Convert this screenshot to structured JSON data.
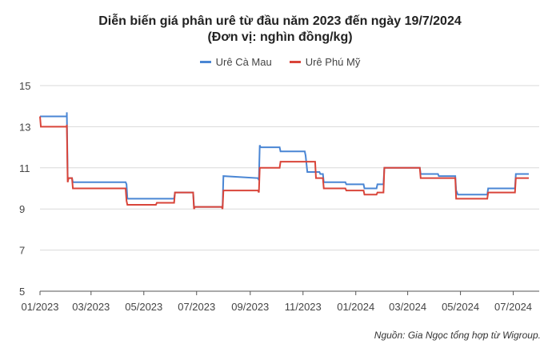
{
  "title_line1": "Diễn biến giá phân urê từ đầu năm 2023 đến ngày 19/7/2024",
  "title_line2": "(Đơn vị: nghìn đồng/kg)",
  "source": "Nguồn: Gia Ngọc tổng hợp từ Wigroup.",
  "chart_data": {
    "type": "line",
    "title": "Diễn biến giá phân urê từ đầu năm 2023 đến ngày 19/7/2024",
    "subtitle": "(Đơn vị: nghìn đồng/kg)",
    "xlabel": "",
    "ylabel": "",
    "ylim": [
      5,
      15
    ],
    "yticks": [
      5,
      7,
      9,
      11,
      13,
      15
    ],
    "xlim": [
      "2023-01-01",
      "2024-07-31"
    ],
    "xticks": [
      {
        "date": "2023-01-01",
        "label": "01/2023"
      },
      {
        "date": "2023-03-01",
        "label": "03/2023"
      },
      {
        "date": "2023-05-01",
        "label": "05/2023"
      },
      {
        "date": "2023-07-01",
        "label": "07/2023"
      },
      {
        "date": "2023-09-01",
        "label": "09/2023"
      },
      {
        "date": "2023-11-01",
        "label": "11/2023"
      },
      {
        "date": "2024-01-01",
        "label": "01/2024"
      },
      {
        "date": "2024-03-01",
        "label": "03/2024"
      },
      {
        "date": "2024-05-01",
        "label": "05/2024"
      },
      {
        "date": "2024-07-01",
        "label": "07/2024"
      }
    ],
    "grid": "horizontal",
    "legend": "top-center",
    "series": [
      {
        "name": "Urê Cà Mau",
        "color": "#4a86d4",
        "points": [
          [
            "2023-01-01",
            13.5
          ],
          [
            "2023-02-01",
            13.5
          ],
          [
            "2023-02-01",
            13.7
          ],
          [
            "2023-02-02",
            10.5
          ],
          [
            "2023-02-07",
            10.5
          ],
          [
            "2023-02-08",
            10.3
          ],
          [
            "2023-04-10",
            10.3
          ],
          [
            "2023-04-11",
            10.2
          ],
          [
            "2023-04-12",
            9.5
          ],
          [
            "2023-06-05",
            9.5
          ],
          [
            "2023-06-06",
            9.8
          ],
          [
            "2023-06-27",
            9.8
          ],
          [
            "2023-06-28",
            9.1
          ],
          [
            "2023-07-31",
            9.1
          ],
          [
            "2023-08-01",
            10.6
          ],
          [
            "2023-09-10",
            10.5
          ],
          [
            "2023-09-11",
            10.4
          ],
          [
            "2023-09-12",
            12.1
          ],
          [
            "2023-09-13",
            12.0
          ],
          [
            "2023-10-05",
            12.0
          ],
          [
            "2023-10-06",
            11.8
          ],
          [
            "2023-11-03",
            11.8
          ],
          [
            "2023-11-04",
            11.6
          ],
          [
            "2023-11-06",
            10.8
          ],
          [
            "2023-11-20",
            10.8
          ],
          [
            "2023-11-21",
            10.7
          ],
          [
            "2023-11-24",
            10.7
          ],
          [
            "2023-11-25",
            10.3
          ],
          [
            "2023-12-20",
            10.3
          ],
          [
            "2023-12-21",
            10.2
          ],
          [
            "2024-01-10",
            10.2
          ],
          [
            "2024-01-11",
            10.0
          ],
          [
            "2024-01-25",
            10.0
          ],
          [
            "2024-01-26",
            10.2
          ],
          [
            "2024-02-02",
            10.2
          ],
          [
            "2024-02-03",
            11.0
          ],
          [
            "2024-03-15",
            11.0
          ],
          [
            "2024-03-16",
            10.7
          ],
          [
            "2024-04-05",
            10.7
          ],
          [
            "2024-04-06",
            10.6
          ],
          [
            "2024-04-25",
            10.6
          ],
          [
            "2024-04-26",
            9.9
          ],
          [
            "2024-04-28",
            9.7
          ],
          [
            "2024-06-01",
            9.7
          ],
          [
            "2024-06-02",
            10.0
          ],
          [
            "2024-07-03",
            10.0
          ],
          [
            "2024-07-04",
            10.7
          ],
          [
            "2024-07-19",
            10.7
          ]
        ]
      },
      {
        "name": "Urê Phú Mỹ",
        "color": "#d9453a",
        "points": [
          [
            "2023-01-01",
            13.5
          ],
          [
            "2023-01-02",
            13.0
          ],
          [
            "2023-02-01",
            13.0
          ],
          [
            "2023-02-01",
            13.1
          ],
          [
            "2023-02-02",
            10.3
          ],
          [
            "2023-02-03",
            10.5
          ],
          [
            "2023-02-07",
            10.5
          ],
          [
            "2023-02-08",
            10.0
          ],
          [
            "2023-04-10",
            10.0
          ],
          [
            "2023-04-11",
            9.4
          ],
          [
            "2023-04-12",
            9.2
          ],
          [
            "2023-05-15",
            9.2
          ],
          [
            "2023-05-16",
            9.3
          ],
          [
            "2023-06-05",
            9.3
          ],
          [
            "2023-06-06",
            9.8
          ],
          [
            "2023-06-27",
            9.8
          ],
          [
            "2023-06-28",
            9.0
          ],
          [
            "2023-06-29",
            9.1
          ],
          [
            "2023-07-30",
            9.1
          ],
          [
            "2023-07-31",
            9.0
          ],
          [
            "2023-08-01",
            9.9
          ],
          [
            "2023-09-10",
            9.9
          ],
          [
            "2023-09-11",
            9.8
          ],
          [
            "2023-09-12",
            11.0
          ],
          [
            "2023-10-05",
            11.0
          ],
          [
            "2023-10-06",
            11.3
          ],
          [
            "2023-11-15",
            11.3
          ],
          [
            "2023-11-16",
            10.5
          ],
          [
            "2023-11-24",
            10.5
          ],
          [
            "2023-11-25",
            10.0
          ],
          [
            "2023-12-20",
            10.0
          ],
          [
            "2023-12-21",
            9.9
          ],
          [
            "2024-01-10",
            9.9
          ],
          [
            "2024-01-11",
            9.7
          ],
          [
            "2024-01-25",
            9.7
          ],
          [
            "2024-01-26",
            9.8
          ],
          [
            "2024-02-02",
            9.8
          ],
          [
            "2024-02-03",
            11.0
          ],
          [
            "2024-03-15",
            11.0
          ],
          [
            "2024-03-16",
            10.5
          ],
          [
            "2024-04-25",
            10.5
          ],
          [
            "2024-04-26",
            9.5
          ],
          [
            "2024-06-01",
            9.5
          ],
          [
            "2024-06-02",
            9.8
          ],
          [
            "2024-07-03",
            9.8
          ],
          [
            "2024-07-04",
            10.5
          ],
          [
            "2024-07-19",
            10.5
          ]
        ]
      }
    ]
  }
}
